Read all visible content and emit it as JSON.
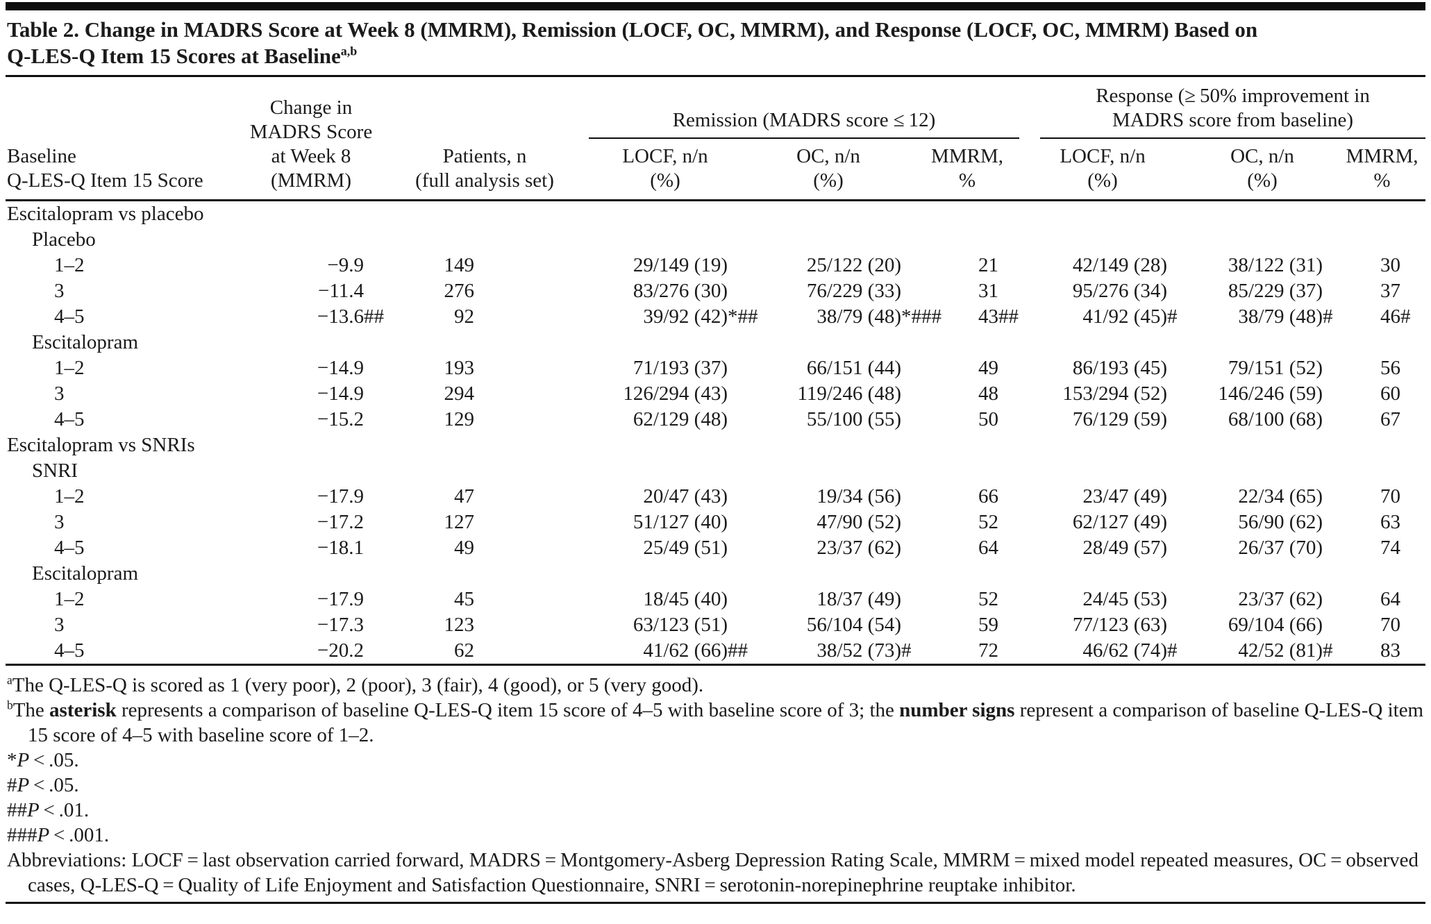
{
  "title": {
    "text": "Table 2. Change in MADRS Score at Week 8 (MMRM), Remission (LOCF, OC, MMRM), and Response (LOCF, OC, MMRM) Based on\nQ-LES-Q Item 15 Scores at Baseline",
    "superscript": "a,b"
  },
  "header": {
    "baseline": "Baseline\nQ-LES-Q Item 15 Score",
    "change": "Change in\nMADRS Score\nat Week 8\n(MMRM)",
    "patients": "Patients, n\n(full analysis set)",
    "remission_group": "Remission (MADRS score ≤ 12)",
    "response_group": "Response (≥ 50% improvement in\nMADRS score from baseline)",
    "locf": "LOCF, n/n\n(%)",
    "oc": "OC, n/n\n(%)",
    "mmrm": "MMRM,\n%"
  },
  "rows": [
    {
      "type": "section",
      "label": "Escitalopram vs placebo"
    },
    {
      "type": "group",
      "label": "Placebo"
    },
    {
      "type": "data",
      "label": "1–2",
      "cells": [
        {
          "v": "−9.9"
        },
        {
          "v": "149"
        },
        {
          "v": "29/149 (19)"
        },
        {
          "v": "25/122 (20)"
        },
        {
          "v": "21"
        },
        {
          "v": "42/149 (28)"
        },
        {
          "v": "38/122 (31)"
        },
        {
          "v": "30"
        }
      ]
    },
    {
      "type": "data",
      "label": "3",
      "cells": [
        {
          "v": "−11.4"
        },
        {
          "v": "276"
        },
        {
          "v": "83/276 (30)"
        },
        {
          "v": "76/229 (33)"
        },
        {
          "v": "31"
        },
        {
          "v": "95/276 (34)"
        },
        {
          "v": "85/229 (37)"
        },
        {
          "v": "37"
        }
      ]
    },
    {
      "type": "data",
      "label": "4–5",
      "cells": [
        {
          "v": "−13.6",
          "m": "##"
        },
        {
          "v": "92"
        },
        {
          "v": "39/92 (42)",
          "m": "*##"
        },
        {
          "v": "38/79 (48)",
          "m": "*###"
        },
        {
          "v": "43",
          "m": "##"
        },
        {
          "v": "41/92 (45)",
          "m": "#"
        },
        {
          "v": "38/79 (48)",
          "m": "#"
        },
        {
          "v": "46",
          "m": "#"
        }
      ]
    },
    {
      "type": "group",
      "label": "Escitalopram"
    },
    {
      "type": "data",
      "label": "1–2",
      "cells": [
        {
          "v": "−14.9"
        },
        {
          "v": "193"
        },
        {
          "v": "71/193 (37)"
        },
        {
          "v": "66/151 (44)"
        },
        {
          "v": "49"
        },
        {
          "v": "86/193 (45)"
        },
        {
          "v": "79/151 (52)"
        },
        {
          "v": "56"
        }
      ]
    },
    {
      "type": "data",
      "label": "3",
      "cells": [
        {
          "v": "−14.9"
        },
        {
          "v": "294"
        },
        {
          "v": "126/294 (43)"
        },
        {
          "v": "119/246 (48)"
        },
        {
          "v": "48"
        },
        {
          "v": "153/294 (52)"
        },
        {
          "v": "146/246 (59)"
        },
        {
          "v": "60"
        }
      ]
    },
    {
      "type": "data",
      "label": "4–5",
      "cells": [
        {
          "v": "−15.2"
        },
        {
          "v": "129"
        },
        {
          "v": "62/129 (48)"
        },
        {
          "v": "55/100 (55)"
        },
        {
          "v": "50"
        },
        {
          "v": "76/129 (59)"
        },
        {
          "v": "68/100 (68)"
        },
        {
          "v": "67"
        }
      ]
    },
    {
      "type": "section",
      "label": "Escitalopram vs SNRIs"
    },
    {
      "type": "group",
      "label": "SNRI"
    },
    {
      "type": "data",
      "label": "1–2",
      "cells": [
        {
          "v": "−17.9"
        },
        {
          "v": "47"
        },
        {
          "v": "20/47 (43)"
        },
        {
          "v": "19/34 (56)"
        },
        {
          "v": "66"
        },
        {
          "v": "23/47 (49)"
        },
        {
          "v": "22/34 (65)"
        },
        {
          "v": "70"
        }
      ]
    },
    {
      "type": "data",
      "label": "3",
      "cells": [
        {
          "v": "−17.2"
        },
        {
          "v": "127"
        },
        {
          "v": "51/127 (40)"
        },
        {
          "v": "47/90 (52)"
        },
        {
          "v": "52"
        },
        {
          "v": "62/127 (49)"
        },
        {
          "v": "56/90 (62)"
        },
        {
          "v": "63"
        }
      ]
    },
    {
      "type": "data",
      "label": "4–5",
      "cells": [
        {
          "v": "−18.1"
        },
        {
          "v": "49"
        },
        {
          "v": "25/49 (51)"
        },
        {
          "v": "23/37 (62)"
        },
        {
          "v": "64"
        },
        {
          "v": "28/49 (57)"
        },
        {
          "v": "26/37 (70)"
        },
        {
          "v": "74"
        }
      ]
    },
    {
      "type": "group",
      "label": "Escitalopram"
    },
    {
      "type": "data",
      "label": "1–2",
      "cells": [
        {
          "v": "−17.9"
        },
        {
          "v": "45"
        },
        {
          "v": "18/45 (40)"
        },
        {
          "v": "18/37 (49)"
        },
        {
          "v": "52"
        },
        {
          "v": "24/45 (53)"
        },
        {
          "v": "23/37 (62)"
        },
        {
          "v": "64"
        }
      ]
    },
    {
      "type": "data",
      "label": "3",
      "cells": [
        {
          "v": "−17.3"
        },
        {
          "v": "123"
        },
        {
          "v": "63/123 (51)"
        },
        {
          "v": "56/104 (54)"
        },
        {
          "v": "59"
        },
        {
          "v": "77/123 (63)"
        },
        {
          "v": "69/104 (66)"
        },
        {
          "v": "70"
        }
      ]
    },
    {
      "type": "data",
      "label": "4–5",
      "cells": [
        {
          "v": "−20.2"
        },
        {
          "v": "62"
        },
        {
          "v": "41/62 (66)",
          "m": "##"
        },
        {
          "v": "38/52 (73)",
          "m": "#"
        },
        {
          "v": "72"
        },
        {
          "v": "46/62 (74)",
          "m": "#"
        },
        {
          "v": "42/52 (81)",
          "m": "#"
        },
        {
          "v": "83"
        }
      ]
    }
  ],
  "footnotes": {
    "a_sup": "a",
    "a_text": "The Q-LES-Q is scored as 1 (very poor), 2 (poor), 3 (fair), 4 (good), or 5 (very good).",
    "b_sup": "b",
    "b_1": "The ",
    "b_bold1": "asterisk",
    "b_2": " represents a comparison of baseline Q-LES-Q item 15 score of 4–5 with baseline score of 3; the ",
    "b_bold2": "number signs",
    "b_3": " represent a comparison of baseline Q-LES-Q item 15 score of 4–5 with baseline score of 1–2.",
    "pvals": [
      {
        "marker": "*",
        "p": "P",
        "rest": " < .05."
      },
      {
        "marker": "#",
        "p": "P",
        "rest": " < .05."
      },
      {
        "marker": "##",
        "p": "P",
        "rest": " < .01."
      },
      {
        "marker": "###",
        "p": "P",
        "rest": " < .001."
      }
    ],
    "abbreviations": "Abbreviations: LOCF = last observation carried forward, MADRS = Montgomery-Asberg Depression Rating Scale, MMRM = mixed model repeated measures, OC = observed cases, Q-LES-Q = Quality of Life Enjoyment and Satisfaction Questionnaire, SNRI = serotonin-norepinephrine reuptake inhibitor."
  }
}
